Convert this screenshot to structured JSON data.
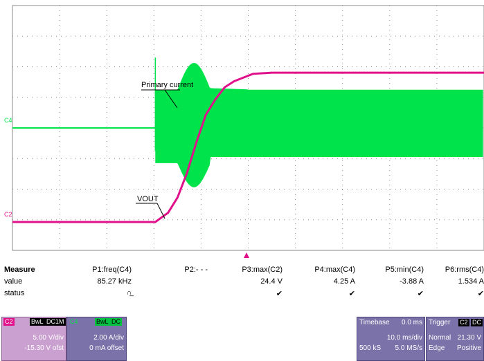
{
  "scope": {
    "channels": {
      "c4": "C4",
      "c2": "C2"
    },
    "annotations": {
      "primary_current": "Primary current",
      "vout": "VOUT"
    },
    "colors": {
      "c4": "#00e34a",
      "c2": "#e0118a",
      "grid": "#8a8a8a",
      "trigger_marker": "#e0118a"
    },
    "trace_data": {
      "time_unit": "ms",
      "time_per_div": 10.0,
      "time_range": [
        -30.0,
        70.0
      ],
      "c2_volts_per_div": 5.0,
      "c2_offset_volts": -15.3,
      "c4_amps_per_div": 2.0,
      "c4_offset_amps": 0,
      "c2_vout": {
        "time_ms": [
          -30,
          0.3,
          3,
          5,
          7,
          9,
          11,
          13,
          15,
          17,
          19,
          21,
          25,
          70
        ],
        "volts": [
          0,
          0,
          1.5,
          4,
          8,
          13,
          17.5,
          20,
          22,
          23,
          23.6,
          24.2,
          24.4,
          24.4
        ]
      },
      "c4_primary_current": {
        "burst_start_ms": 0.3,
        "max_amps": 4.25,
        "min_amps": -3.88,
        "freq_khz": 85.27,
        "rms_amps": 1.534
      }
    }
  },
  "measure": {
    "title": "Measure",
    "row_labels": {
      "value": "value",
      "status": "status"
    },
    "columns": [
      {
        "param": "P1:freq(C4)",
        "value": "85.27 kHz",
        "status": "∩̲"
      },
      {
        "param": "P2:- - -",
        "value": "",
        "status": ""
      },
      {
        "param": "P3:max(C2)",
        "value": "24.4 V",
        "status": "✔"
      },
      {
        "param": "P4:max(C4)",
        "value": "4.25 A",
        "status": "✔"
      },
      {
        "param": "P5:min(C4)",
        "value": "-3.88 A",
        "status": "✔"
      },
      {
        "param": "P6:rms(C4)",
        "value": "1.534 A",
        "status": "✔"
      }
    ]
  },
  "channel_boxes": {
    "c2": {
      "name": "C2",
      "tag1": "BwL",
      "tag2": "DC1M",
      "scale": "5.00 V/div",
      "offset": "-15.30 V ofst"
    },
    "c4": {
      "name": "C4",
      "tag1": "BwL",
      "tag2": "DC",
      "scale": "2.00 A/div",
      "offset": "0 mA offset"
    }
  },
  "timebase": {
    "title": "Timebase",
    "delay": "0.0 ms",
    "per_div": "10.0 ms/div",
    "samples": "500 kS",
    "rate": "5.0 MS/s"
  },
  "trigger": {
    "title": "Trigger",
    "source": "C2",
    "coupling": "DC",
    "mode": "Normal",
    "level": "21.30 V",
    "type": "Edge",
    "slope": "Positive"
  }
}
